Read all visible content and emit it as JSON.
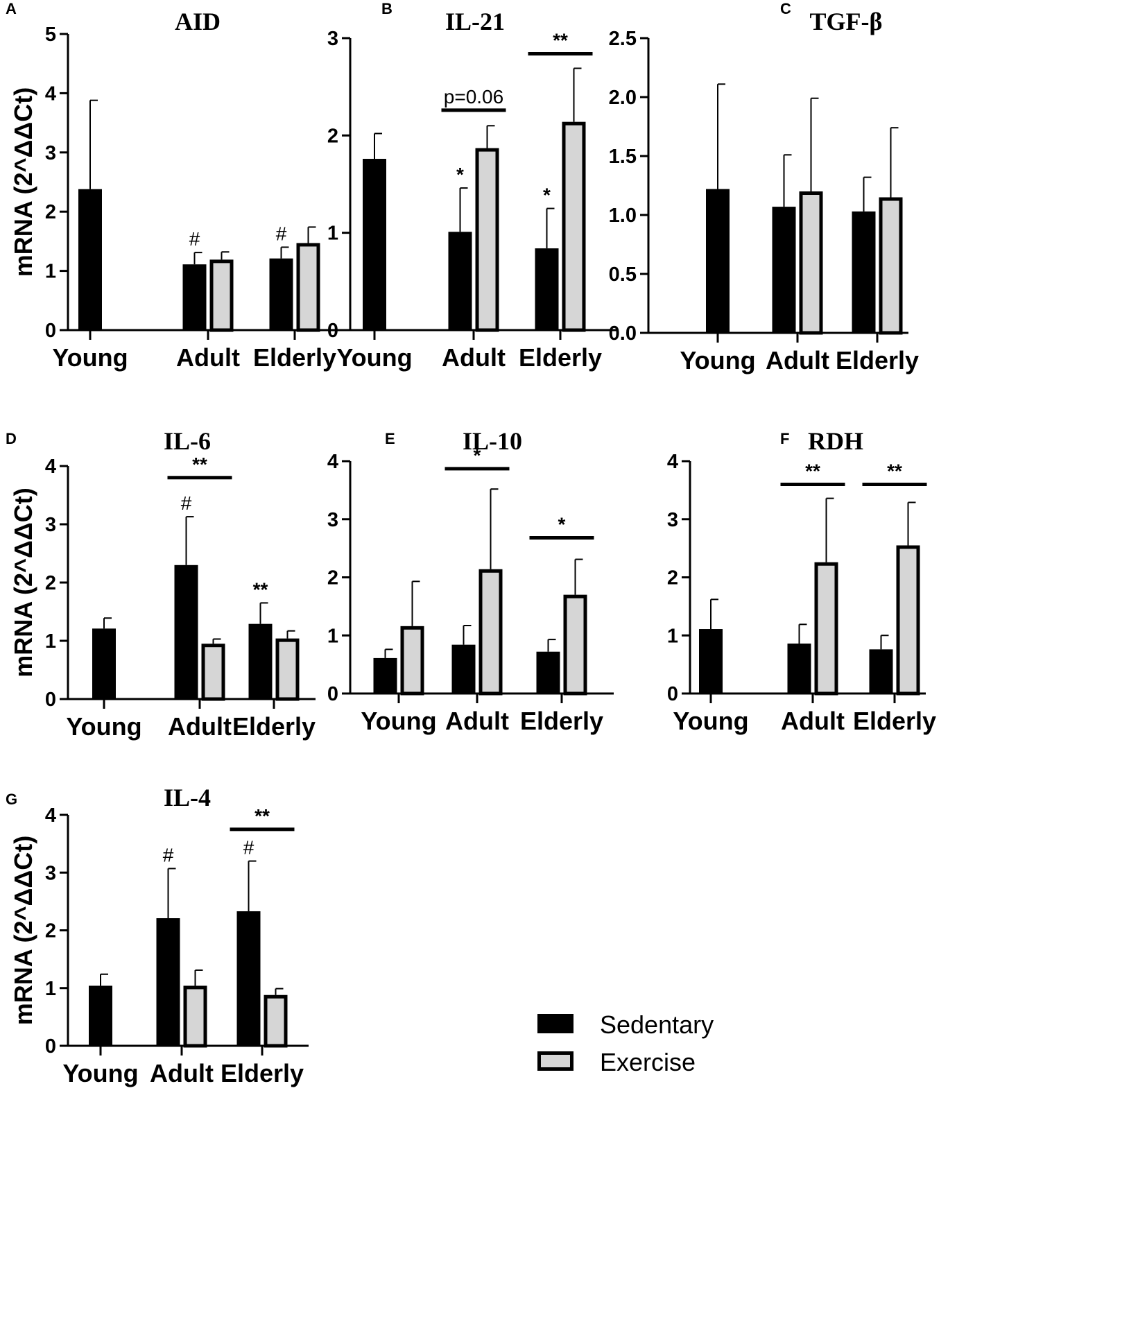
{
  "figure": {
    "ylabel": "mRNA (2^ΔΔCt)",
    "legend": [
      {
        "label": "Sedentary",
        "fill": "#000000"
      },
      {
        "label": "Exercise",
        "fill": "#d6d6d6"
      }
    ],
    "colors": {
      "sedentary": "#000000",
      "exercise": "#d6d6d6",
      "axis": "#000000"
    }
  },
  "chart_data": [
    {
      "letter": "A",
      "title": "AID",
      "type": "bar",
      "categories": [
        "Young",
        "Adult",
        "Elderly"
      ],
      "ylim": [
        0,
        5
      ],
      "ticks": [
        "0",
        "1",
        "2",
        "3",
        "4",
        "5"
      ],
      "show_ylabel": true,
      "series": [
        {
          "name": "Sedentary",
          "values": [
            2.38,
            1.11,
            1.21
          ],
          "errors": [
            1.5,
            0.2,
            0.19
          ]
        },
        {
          "name": "Exercise",
          "values": [
            null,
            1.19,
            1.47
          ],
          "errors": [
            null,
            0.13,
            0.27
          ]
        }
      ],
      "annotations": [
        {
          "text": "#",
          "category": 1,
          "series": 0
        },
        {
          "text": "#",
          "category": 2,
          "series": 0
        }
      ],
      "brackets": []
    },
    {
      "letter": "B",
      "title": "IL-21",
      "type": "bar",
      "categories": [
        "Young",
        "Adult",
        "Elderly"
      ],
      "ylim": [
        0,
        3
      ],
      "ticks": [
        "0",
        "1",
        "2",
        "3"
      ],
      "show_ylabel": false,
      "series": [
        {
          "name": "Sedentary",
          "values": [
            1.76,
            1.01,
            0.84
          ],
          "errors": [
            0.26,
            0.45,
            0.41
          ]
        },
        {
          "name": "Exercise",
          "values": [
            null,
            1.87,
            2.14
          ],
          "errors": [
            null,
            0.23,
            0.55
          ]
        }
      ],
      "annotations": [
        {
          "text": "*",
          "category": 1,
          "series": 0
        },
        {
          "text": "*",
          "category": 2,
          "series": 0
        }
      ],
      "brackets": [
        {
          "text": "p=0.06",
          "category": 1,
          "y": 2.26
        },
        {
          "text": "**",
          "category": 2,
          "y": 2.84
        }
      ]
    },
    {
      "letter": "C",
      "title": "TGF-β",
      "type": "bar",
      "categories": [
        "Young",
        "Adult",
        "Elderly"
      ],
      "ylim": [
        0,
        2.5
      ],
      "ticks": [
        "0.0",
        "0.5",
        "1.0",
        "1.5",
        "2.0",
        "2.5"
      ],
      "show_ylabel": false,
      "series": [
        {
          "name": "Sedentary",
          "values": [
            1.22,
            1.07,
            1.03
          ],
          "errors": [
            0.89,
            0.44,
            0.29
          ]
        },
        {
          "name": "Exercise",
          "values": [
            null,
            1.2,
            1.15
          ],
          "errors": [
            null,
            0.79,
            0.59
          ]
        }
      ],
      "annotations": [],
      "brackets": []
    },
    {
      "letter": "D",
      "title": "IL-6",
      "type": "bar",
      "categories": [
        "Young",
        "Adult",
        "Elderly"
      ],
      "ylim": [
        0,
        4
      ],
      "ticks": [
        "0",
        "1",
        "2",
        "3",
        "4"
      ],
      "show_ylabel": true,
      "series": [
        {
          "name": "Sedentary",
          "values": [
            1.21,
            2.3,
            1.29
          ],
          "errors": [
            0.18,
            0.83,
            0.36
          ]
        },
        {
          "name": "Exercise",
          "values": [
            null,
            0.95,
            1.04
          ],
          "errors": [
            null,
            0.08,
            0.13
          ]
        }
      ],
      "annotations": [
        {
          "text": "#",
          "category": 1,
          "series": 0
        },
        {
          "text": "**",
          "category": 2,
          "series": 0
        }
      ],
      "brackets": [
        {
          "text": "**",
          "category": 1,
          "y": 3.8
        }
      ]
    },
    {
      "letter": "E",
      "title": "IL-10",
      "type": "bar",
      "categories": [
        "Young",
        "Adult",
        "Elderly"
      ],
      "ylim": [
        0,
        4
      ],
      "ticks": [
        "0",
        "1",
        "2",
        "3",
        "4"
      ],
      "show_ylabel": false,
      "series": [
        {
          "name": "Sedentary",
          "values": [
            0.61,
            0.84,
            0.72
          ],
          "errors": [
            0.15,
            0.33,
            0.21
          ]
        },
        {
          "name": "Exercise",
          "values": [
            1.16,
            2.14,
            1.7
          ],
          "errors": [
            0.77,
            1.38,
            0.61
          ]
        }
      ],
      "annotations": [],
      "brackets": [
        {
          "text": "*",
          "category": 1,
          "y": 3.87
        },
        {
          "text": "*",
          "category": 2,
          "y": 2.68
        }
      ]
    },
    {
      "letter": "F",
      "title": "RDH",
      "type": "bar",
      "categories": [
        "Young",
        "Adult",
        "Elderly"
      ],
      "ylim": [
        0,
        4
      ],
      "ticks": [
        "0",
        "1",
        "2",
        "3",
        "4"
      ],
      "show_ylabel": false,
      "series": [
        {
          "name": "Sedentary",
          "values": [
            1.11,
            0.86,
            0.76
          ],
          "errors": [
            0.51,
            0.33,
            0.24
          ]
        },
        {
          "name": "Exercise",
          "values": [
            null,
            2.26,
            2.55
          ],
          "errors": [
            null,
            1.1,
            0.74
          ]
        }
      ],
      "annotations": [],
      "brackets": [
        {
          "text": "**",
          "category": 1,
          "y": 3.6
        },
        {
          "text": "**",
          "category": 2,
          "y": 3.6
        }
      ]
    },
    {
      "letter": "G",
      "title": "IL-4",
      "type": "bar",
      "categories": [
        "Young",
        "Adult",
        "Elderly"
      ],
      "ylim": [
        0,
        4
      ],
      "ticks": [
        "0",
        "1",
        "2",
        "3",
        "4"
      ],
      "show_ylabel": true,
      "series": [
        {
          "name": "Sedentary",
          "values": [
            1.04,
            2.21,
            2.33
          ],
          "errors": [
            0.2,
            0.86,
            0.87
          ]
        },
        {
          "name": "Exercise",
          "values": [
            null,
            1.04,
            0.88
          ],
          "errors": [
            null,
            0.27,
            0.11
          ]
        }
      ],
      "annotations": [
        {
          "text": "#",
          "category": 1,
          "series": 0
        },
        {
          "text": "#",
          "category": 2,
          "series": 0
        }
      ],
      "brackets": [
        {
          "text": "**",
          "category": 2,
          "y": 3.75
        }
      ]
    }
  ]
}
